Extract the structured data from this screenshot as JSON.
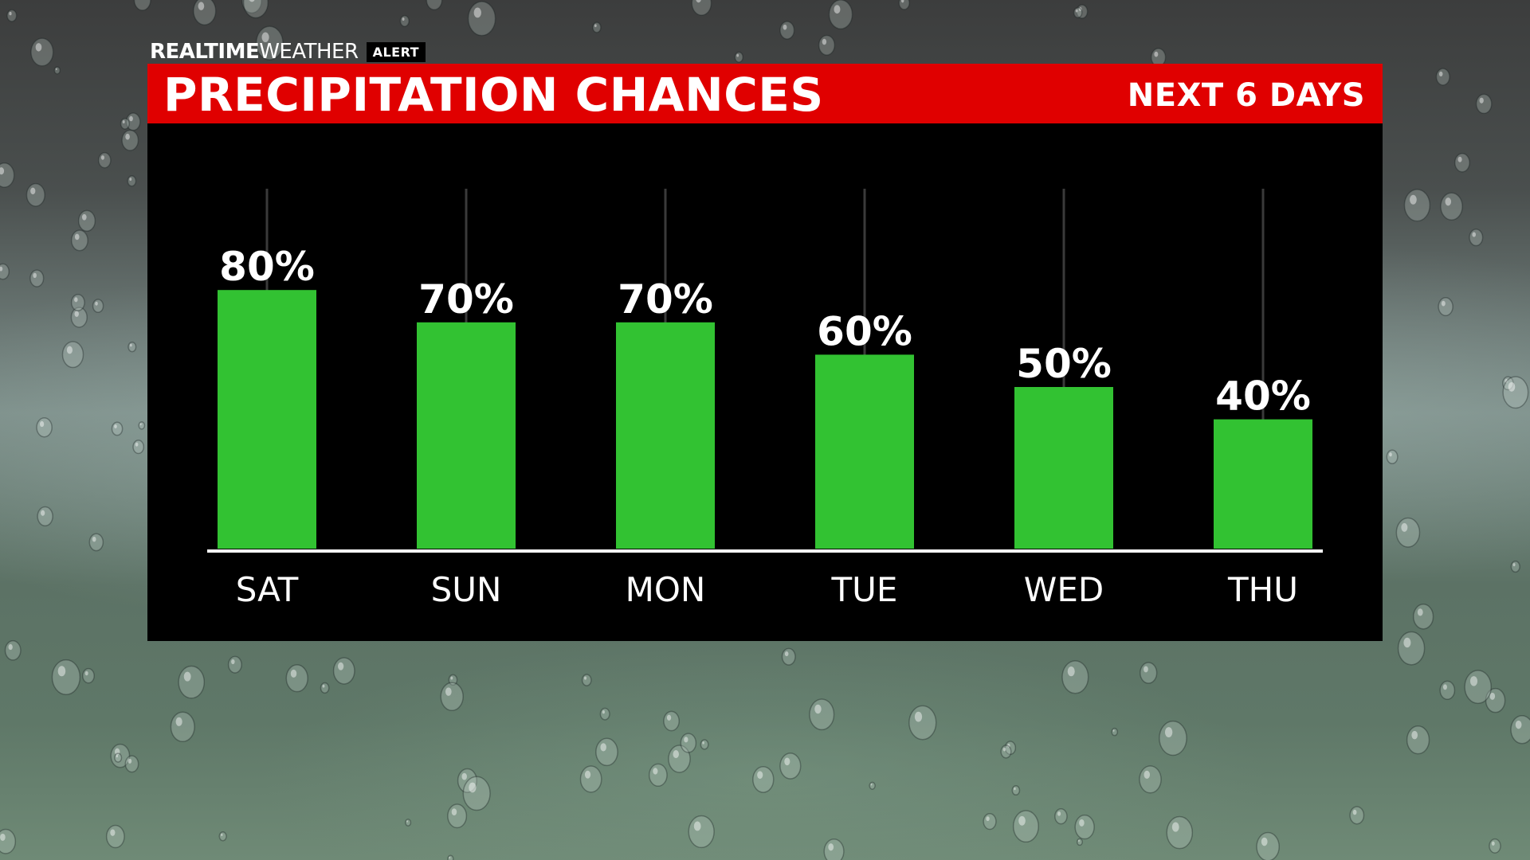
{
  "brand": {
    "bold": "REALTIME",
    "light": "WEATHER",
    "alert": "ALERT"
  },
  "header": {
    "title": "PRECIPITATION CHANCES",
    "subtitle": "NEXT 6 DAYS"
  },
  "colors": {
    "header_red": "#e00000",
    "bar_green": "#32c232",
    "panel_black": "#000000",
    "text_white": "#ffffff"
  },
  "chart_data": {
    "type": "bar",
    "title": "PRECIPITATION CHANCES",
    "categories": [
      "SAT",
      "SUN",
      "MON",
      "TUE",
      "WED",
      "THU"
    ],
    "values": [
      80,
      70,
      70,
      60,
      50,
      40
    ],
    "labels": [
      "80%",
      "70%",
      "70%",
      "60%",
      "50%",
      "40%"
    ],
    "xlabel": "",
    "ylabel": "",
    "ylim": [
      0,
      100
    ],
    "grid": false,
    "legend": "none"
  }
}
